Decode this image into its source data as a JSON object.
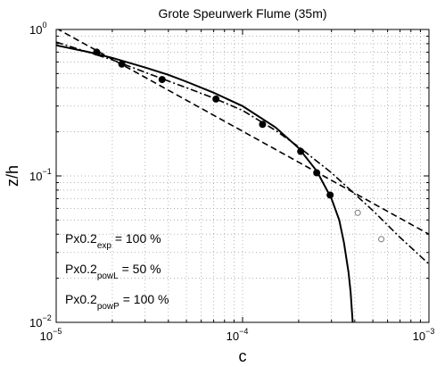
{
  "chart_data": {
    "type": "scatter",
    "title": "Grote Speurwerk Flume (35m)",
    "xlabel": "c",
    "ylabel": "z/h",
    "xscale": "log",
    "yscale": "log",
    "xlim": [
      1e-05,
      0.001
    ],
    "ylim": [
      0.01,
      1
    ],
    "grid": true,
    "x_ticks": [
      {
        "value": 1e-05,
        "base": "10",
        "exp": "−5"
      },
      {
        "value": 0.0001,
        "base": "10",
        "exp": "−4"
      },
      {
        "value": 0.001,
        "base": "10",
        "exp": "−3"
      }
    ],
    "y_ticks": [
      {
        "value": 0.01,
        "base": "10",
        "exp": "−2"
      },
      {
        "value": 0.1,
        "base": "10",
        "exp": "−1"
      },
      {
        "value": 1,
        "base": "10",
        "exp": "0"
      }
    ],
    "series": [
      {
        "marker": "filled-circle",
        "points": [
          [
            1.65e-05,
            0.7
          ],
          [
            2.25e-05,
            0.58
          ],
          [
            3.7e-05,
            0.455
          ],
          [
            7.2e-05,
            0.335
          ],
          [
            0.000128,
            0.225
          ],
          [
            0.000205,
            0.147
          ],
          [
            0.00025,
            0.105
          ],
          [
            0.000295,
            0.074
          ]
        ]
      },
      {
        "marker": "open-circle",
        "points": [
          [
            0.000415,
            0.056
          ],
          [
            0.000555,
            0.037
          ]
        ]
      },
      {
        "line": "solid",
        "points": [
          [
            1e-05,
            0.78
          ],
          [
            1.5e-05,
            0.7
          ],
          [
            2e-05,
            0.64
          ],
          [
            3e-05,
            0.55
          ],
          [
            4e-05,
            0.49
          ],
          [
            5e-05,
            0.44
          ],
          [
            7e-05,
            0.37
          ],
          [
            0.0001,
            0.3
          ],
          [
            0.00015,
            0.215
          ],
          [
            0.0002,
            0.155
          ],
          [
            0.00025,
            0.108
          ],
          [
            0.0003,
            0.07
          ],
          [
            0.00033,
            0.05
          ],
          [
            0.00035,
            0.035
          ],
          [
            0.00037,
            0.022
          ],
          [
            0.00038,
            0.016
          ],
          [
            0.00039,
            0.01
          ]
        ]
      },
      {
        "line": "dashed",
        "points": [
          [
            1e-05,
            1.02
          ],
          [
            0.001,
            0.04
          ]
        ]
      },
      {
        "line": "dash-dot",
        "points": [
          [
            1e-05,
            0.82
          ],
          [
            2e-05,
            0.62
          ],
          [
            3e-05,
            0.51
          ],
          [
            5e-05,
            0.4
          ],
          [
            7e-05,
            0.34
          ],
          [
            0.0001,
            0.28
          ],
          [
            0.00015,
            0.205
          ],
          [
            0.0002,
            0.158
          ],
          [
            0.0003,
            0.105
          ],
          [
            0.0005,
            0.058
          ],
          [
            0.0007,
            0.038
          ],
          [
            0.001,
            0.025
          ]
        ]
      }
    ],
    "annotations": [
      {
        "main": "Px0.2",
        "sub": "exp",
        "rest": " = 100 %"
      },
      {
        "main": "Px0.2",
        "sub": "powL",
        "rest": " = 50 %"
      },
      {
        "main": "Px0.2",
        "sub": "powP",
        "rest": " = 100 %"
      }
    ]
  }
}
